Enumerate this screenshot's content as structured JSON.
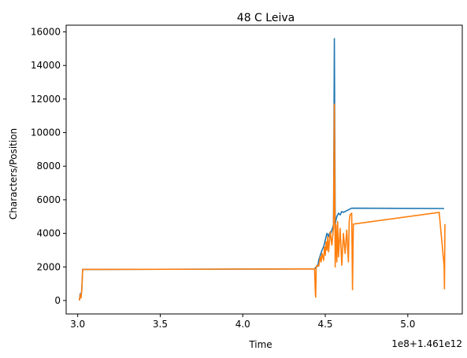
{
  "chart_data": {
    "type": "line",
    "title": "48 C Leiva",
    "xlabel": "Time",
    "ylabel": "Characters/Position",
    "x_offset_label": "1e8+1.461e12",
    "xlim": [
      2.93,
      5.33
    ],
    "ylim": [
      -800,
      16400
    ],
    "xticks": [
      3.0,
      3.5,
      4.0,
      4.5,
      5.0
    ],
    "xtick_labels": [
      "3.0",
      "3.5",
      "4.0",
      "4.5",
      "5.0"
    ],
    "yticks": [
      0,
      2000,
      4000,
      6000,
      8000,
      10000,
      12000,
      14000,
      16000
    ],
    "ytick_labels": [
      "0",
      "2000",
      "4000",
      "6000",
      "8000",
      "10000",
      "12000",
      "14000",
      "16000"
    ],
    "grid": false,
    "colors": [
      "#1f77b4",
      "#ff7f0e"
    ],
    "series": [
      {
        "color": "#1f77b4",
        "x": [
          3.01,
          3.015,
          3.02,
          3.025,
          3.03,
          3.035,
          4.43,
          4.435,
          4.44,
          4.445,
          4.455,
          4.46,
          4.47,
          4.48,
          4.49,
          4.5,
          4.51,
          4.52,
          4.525,
          4.53,
          4.54,
          4.55,
          4.555,
          4.56,
          4.565,
          4.57,
          4.58,
          4.59,
          4.6,
          4.61,
          4.62,
          4.64,
          4.66,
          5.22
        ],
        "y": [
          0,
          400,
          200,
          700,
          1850,
          1850,
          1880,
          1900,
          1950,
          2000,
          2050,
          2400,
          2700,
          3000,
          3200,
          3600,
          4000,
          3800,
          4000,
          3900,
          4200,
          4500,
          15600,
          4500,
          4800,
          5000,
          5200,
          5100,
          5300,
          5250,
          5300,
          5400,
          5500,
          5480
        ]
      },
      {
        "color": "#ff7f0e",
        "x": [
          3.01,
          3.015,
          3.02,
          3.025,
          3.03,
          3.035,
          4.43,
          4.435,
          4.44,
          4.442,
          4.445,
          4.45,
          4.46,
          4.47,
          4.475,
          4.48,
          4.49,
          4.495,
          4.5,
          4.505,
          4.51,
          4.515,
          4.52,
          4.53,
          4.54,
          4.55,
          4.555,
          4.56,
          4.565,
          4.57,
          4.575,
          4.58,
          4.59,
          4.6,
          4.61,
          4.62,
          4.63,
          4.64,
          4.645,
          4.65,
          4.66,
          4.665,
          4.67,
          5.19,
          5.22,
          5.222,
          5.225
        ],
        "y": [
          0,
          350,
          150,
          650,
          1850,
          1850,
          1880,
          1900,
          400,
          200,
          2000,
          2100,
          2050,
          2600,
          2300,
          2800,
          2400,
          3200,
          2700,
          3500,
          3000,
          3800,
          2900,
          4100,
          3300,
          4400,
          11700,
          2000,
          4500,
          2300,
          4700,
          2600,
          4300,
          2100,
          4000,
          2800,
          4200,
          2300,
          4700,
          5100,
          5200,
          650,
          4550,
          5250,
          2050,
          700,
          4550
        ]
      }
    ]
  }
}
